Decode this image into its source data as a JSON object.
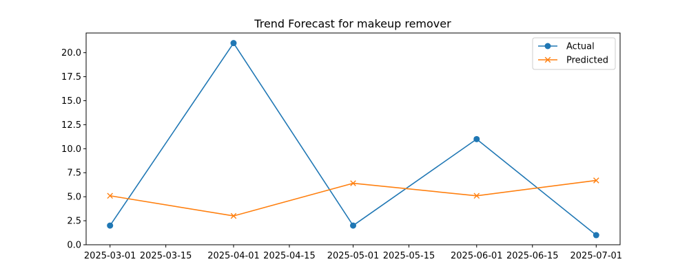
{
  "chart_data": {
    "type": "line",
    "title": "Trend Forecast for makeup remover",
    "xlabel": "",
    "ylabel": "",
    "x_ticks": [
      "2025-03-01",
      "2025-03-15",
      "2025-04-01",
      "2025-04-15",
      "2025-05-01",
      "2025-05-15",
      "2025-06-01",
      "2025-06-15",
      "2025-07-01"
    ],
    "y_ticks": [
      "0.0",
      "2.5",
      "5.0",
      "7.5",
      "10.0",
      "12.5",
      "15.0",
      "17.5",
      "20.0"
    ],
    "xlim": [
      "2025-02-23",
      "2025-07-07"
    ],
    "ylim": [
      0,
      22.05
    ],
    "grid": false,
    "legend_position": "top-right",
    "series": [
      {
        "name": "Actual",
        "color": "#1f77b4",
        "marker": "circle",
        "x": [
          "2025-03-01",
          "2025-04-01",
          "2025-05-01",
          "2025-06-01",
          "2025-07-01"
        ],
        "values": [
          2,
          21,
          2,
          11,
          1
        ]
      },
      {
        "name": "Predicted",
        "color": "#ff7f0e",
        "marker": "x",
        "x": [
          "2025-03-01",
          "2025-04-01",
          "2025-05-01",
          "2025-06-01",
          "2025-07-01"
        ],
        "values": [
          5.1,
          3.0,
          6.4,
          5.1,
          6.7
        ]
      }
    ]
  }
}
